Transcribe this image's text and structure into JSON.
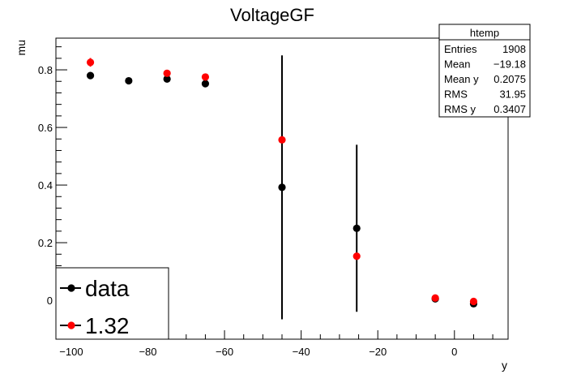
{
  "chart_data": {
    "type": "scatter",
    "title": "VoltageGF",
    "xlabel": "y",
    "ylabel": "mu",
    "xlim": [
      -104,
      14
    ],
    "ylim": [
      -0.135,
      0.91
    ],
    "x_ticks": [
      -100,
      -80,
      -60,
      -40,
      -20,
      0
    ],
    "x_tick_labels": [
      "−100",
      "−80",
      "−60",
      "−40",
      "−20",
      "0"
    ],
    "y_ticks": [
      0,
      0.2,
      0.4,
      0.6,
      0.8
    ],
    "y_tick_labels": [
      "0",
      "0.2",
      "0.4",
      "0.6",
      "0.8"
    ],
    "grid": false,
    "series": [
      {
        "name": "data",
        "color": "#000000",
        "x": [
          -95,
          -85,
          -75,
          -65,
          -45,
          -25.5,
          -5,
          5
        ],
        "y": [
          0.78,
          0.762,
          0.768,
          0.752,
          0.392,
          0.25,
          0.005,
          -0.012
        ],
        "y_err": [
          0.01,
          0.005,
          0.008,
          0.008,
          0.458,
          0.29,
          0.005,
          0.005
        ]
      },
      {
        "name": "1.32",
        "color": "#ff0000",
        "x": [
          -95,
          -75,
          -65,
          -45,
          -25.5,
          -5,
          5
        ],
        "y": [
          0.826,
          0.788,
          0.775,
          0.557,
          0.153,
          0.008,
          -0.004
        ],
        "y_err": [
          0.015,
          0.006,
          0.006,
          0,
          0,
          0.004,
          0.004
        ]
      }
    ],
    "legend": {
      "placement": "bottom-left",
      "entries": [
        "data",
        "1.32"
      ]
    },
    "stats_box": {
      "title": "htemp",
      "placement": "top-right",
      "rows": [
        {
          "label": "Entries",
          "value": "1908"
        },
        {
          "label": "Mean",
          "value": "−19.18"
        },
        {
          "label": "Mean y",
          "value": "0.2075"
        },
        {
          "label": "RMS",
          "value": "31.95"
        },
        {
          "label": "RMS y",
          "value": "0.3407"
        }
      ]
    }
  }
}
